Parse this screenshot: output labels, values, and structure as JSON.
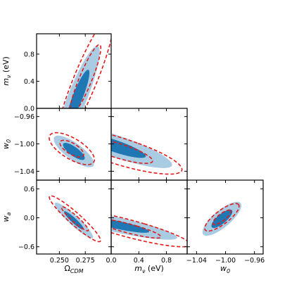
{
  "chart_data": {
    "type": "corner",
    "grid": false,
    "parameters": [
      {
        "id": "om",
        "label": "Ω",
        "sub": "CDM",
        "ticks": [
          "0.250",
          "0.275"
        ],
        "tick_values": [
          0.25,
          0.275
        ],
        "range": [
          0.228,
          0.3
        ]
      },
      {
        "id": "mnu",
        "label": "m",
        "sub": "ν",
        "unit": " (eV)",
        "ticks": [
          "0.0",
          "0.4",
          "0.8"
        ],
        "tick_values": [
          0.0,
          0.4,
          0.8
        ],
        "range": [
          0.0,
          1.1
        ]
      },
      {
        "id": "w0",
        "label": "w",
        "sub": "0",
        "ticks": [
          "−1.04",
          "−1.00",
          "−0.96"
        ],
        "tick_values": [
          -1.04,
          -1.0,
          -0.96
        ],
        "range": [
          -1.053,
          -0.948
        ]
      },
      {
        "id": "wa",
        "label": "w",
        "sub": "a",
        "ticks": [
          "−0.6",
          "0.0",
          "0.6"
        ],
        "tick_values": [
          -0.6,
          0.0,
          0.6
        ],
        "range": [
          -0.75,
          0.78
        ]
      }
    ],
    "series": [
      {
        "style": "filled",
        "colors": {
          "inner": "#1f77b4",
          "outer": "#a9cce3"
        }
      },
      {
        "style": "dashed",
        "colors": {
          "line": "#e31a1c"
        }
      }
    ],
    "panels": [
      {
        "x": "om",
        "y": "mnu",
        "filled": {
          "c": [
            0.268,
            0.18
          ],
          "sx": 0.011,
          "sy": 0.39,
          "rho": 0.88,
          "k1": 1.0,
          "k2": 1.9
        },
        "dashed": {
          "c": [
            0.275,
            0.42
          ],
          "sx": 0.015,
          "sy": 0.52,
          "rho": 0.9,
          "k1": 1.0,
          "k2": 1.85
        }
      },
      {
        "x": "om",
        "y": "w0",
        "filled": {
          "c": [
            0.264,
            -1.011
          ],
          "sx": 0.0105,
          "sy": 0.0125,
          "rho": -0.78,
          "k1": 1.0,
          "k2": 1.85
        },
        "dashed": {
          "c": [
            0.262,
            -1.007
          ],
          "sx": 0.0115,
          "sy": 0.0123,
          "rho": -0.68,
          "k1": 1.0,
          "k2": 1.9
        }
      },
      {
        "x": "mnu",
        "y": "w0",
        "filled": {
          "c": [
            0.05,
            -1.003
          ],
          "sx": 0.45,
          "sy": 0.0175,
          "rho": -0.85,
          "k1": 1.0,
          "k2": 1.85
        },
        "dashed": {
          "c": [
            0.1,
            -1.01
          ],
          "sx": 0.5,
          "sy": 0.0185,
          "rho": -0.8,
          "k1": 1.0,
          "k2": 1.85
        }
      },
      {
        "x": "om",
        "y": "wa",
        "filled": {
          "c": [
            0.264,
            -0.055
          ],
          "sx": 0.0095,
          "sy": 0.19,
          "rho": -0.93,
          "k1": 1.0,
          "k2": 1.95
        },
        "dashed": {
          "c": [
            0.265,
            -0.02
          ],
          "sx": 0.013,
          "sy": 0.25,
          "rho": -0.94,
          "k1": 1.0,
          "k2": 1.9
        }
      },
      {
        "x": "mnu",
        "y": "wa",
        "filled": {
          "c": [
            0.1,
            -0.15
          ],
          "sx": 0.45,
          "sy": 0.16,
          "rho": -0.85,
          "k1": 1.0,
          "k2": 1.9
        },
        "dashed": {
          "c": [
            0.25,
            -0.22
          ],
          "sx": 0.47,
          "sy": 0.2,
          "rho": -0.87,
          "k1": 1.0,
          "k2": 1.9
        }
      },
      {
        "x": "w0",
        "y": "wa",
        "filled": {
          "c": [
            -1.005,
            -0.02
          ],
          "sx": 0.0145,
          "sy": 0.19,
          "rho": 0.78,
          "k1": 1.0,
          "k2": 1.85
        },
        "dashed": {
          "c": [
            -1.005,
            0.01
          ],
          "sx": 0.0125,
          "sy": 0.15,
          "rho": 0.8,
          "k1": 1.0,
          "k2": 1.9
        }
      }
    ]
  }
}
